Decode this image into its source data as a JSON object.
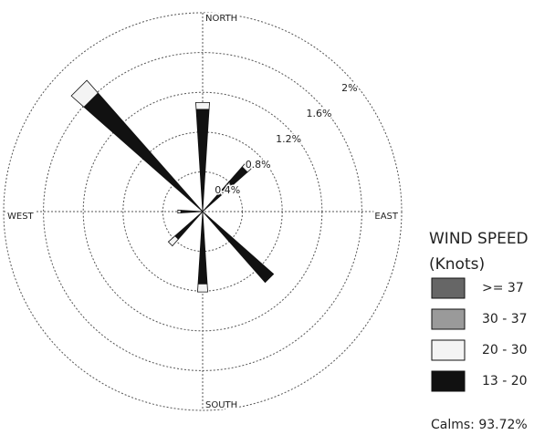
{
  "chart_data": {
    "type": "windrose",
    "categories": [
      "NORTH",
      null,
      "EAST",
      null,
      "SOUTH",
      null,
      "WEST",
      null
    ],
    "series": [
      {
        "name": ">= 37",
        "color": "#666666",
        "values": [
          0,
          0,
          0,
          0,
          0,
          0,
          0,
          0
        ]
      },
      {
        "name": "30 - 37",
        "color": "#9a9a9a",
        "values": [
          0,
          0,
          0,
          0,
          0,
          0,
          0,
          0
        ]
      },
      {
        "name": "20 - 30",
        "color": "#f4f4f4",
        "values": [
          0.07,
          0.05,
          0,
          0,
          0.08,
          0.09,
          0.03,
          0.17
        ]
      },
      {
        "name": "13 - 20",
        "color": "#111111",
        "values": [
          1.03,
          0.6,
          0,
          0.95,
          0.73,
          0.37,
          0.22,
          1.59
        ]
      }
    ],
    "rlim": [
      0,
      2
    ],
    "rticks": [
      {
        "value": 0.4,
        "label": "0.4%"
      },
      {
        "value": 0.8,
        "label": "0.8%"
      },
      {
        "value": 1.2,
        "label": "1.2%"
      },
      {
        "value": 1.6,
        "label": "1.6%"
      },
      {
        "value": 2,
        "label": "2%"
      }
    ],
    "legend_title": "WIND SPEED",
    "legend_subtitle": "(Knots)",
    "annotation": "Calms: 93.72%"
  }
}
